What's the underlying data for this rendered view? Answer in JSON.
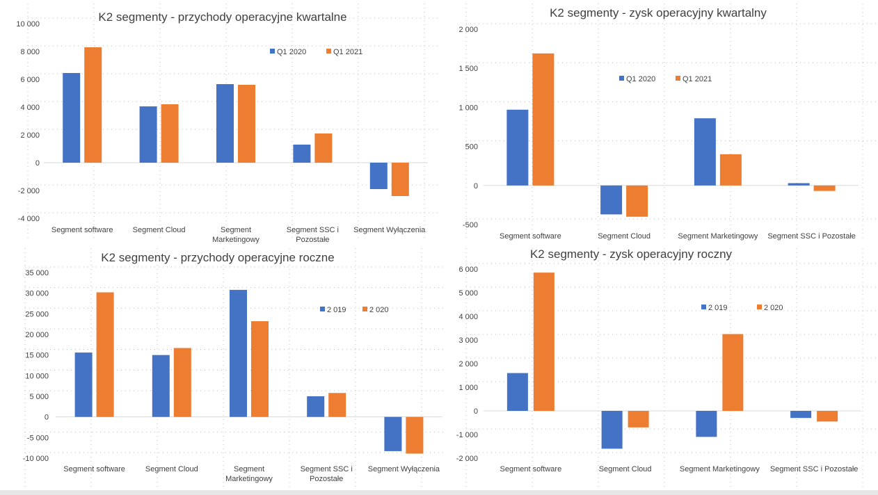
{
  "colors": {
    "blue": "#4472C4",
    "orange": "#ED7D31",
    "text": "#404040",
    "axis": "#d9d9d9",
    "grid": "#bfbfbf"
  },
  "chart_data": [
    {
      "type": "bar",
      "title": "K2 segmenty - przychody operacyjne kwartalne",
      "categories": [
        "Segment software",
        "Segment Cloud",
        "Segment Marketingowy",
        "Segment SSC i Pozostałe",
        "Segment Wyłączenia"
      ],
      "series": [
        {
          "name": "Q1 2020",
          "values": [
            6450,
            4050,
            5650,
            1300,
            -1900
          ]
        },
        {
          "name": "Q1 2021",
          "values": [
            8300,
            4200,
            5600,
            2100,
            -2400
          ]
        }
      ],
      "yticks": [
        "10 000",
        "8 000",
        "6 000",
        "4 000",
        "2 000",
        "0",
        "-2 000",
        "-4 000"
      ],
      "ylim": [
        -4000,
        10000
      ],
      "legend_position": "top-right"
    },
    {
      "type": "bar",
      "title": "K2 segmenty - zysk operacyjny kwartalny",
      "categories": [
        "Segment software",
        "Segment Cloud",
        "Segment Marketingowy",
        "Segment SSC i Pozostałe"
      ],
      "series": [
        {
          "name": "Q1 2020",
          "values": [
            970,
            -370,
            860,
            30
          ]
        },
        {
          "name": "Q1 2021",
          "values": [
            1690,
            -400,
            400,
            -70
          ]
        }
      ],
      "yticks": [
        "2 000",
        "1 500",
        "1 000",
        "500",
        "0",
        "-500"
      ],
      "ylim": [
        -500,
        2000
      ],
      "legend_position": "top-right"
    },
    {
      "type": "bar",
      "title": "K2 segmenty - przychody operacyjne roczne",
      "categories": [
        "Segment software",
        "Segment Cloud",
        "Segment Marketingowy",
        "Segment SSC i Pozostałe",
        "Segment Wyłączenia"
      ],
      "series": [
        {
          "name": "2 019",
          "values": [
            15600,
            15000,
            30800,
            5000,
            -8300
          ]
        },
        {
          "name": "2 020",
          "values": [
            30200,
            16700,
            23200,
            5800,
            -8900
          ]
        }
      ],
      "yticks": [
        "35 000",
        "30 000",
        "25 000",
        "20 000",
        "15 000",
        "10 000",
        "5 000",
        "0",
        "-5 000",
        "-10 000"
      ],
      "ylim": [
        -10000,
        35000
      ],
      "legend_position": "top-right"
    },
    {
      "type": "bar",
      "title": "K2 segmenty - zysk operacyjny roczny",
      "categories": [
        "Segment software",
        "Segment Cloud",
        "Segment Marketingowy",
        "Segment SSC i Pozostałe"
      ],
      "series": [
        {
          "name": "2 019",
          "values": [
            1600,
            -1600,
            -1100,
            -300
          ]
        },
        {
          "name": "2 020",
          "values": [
            5850,
            -700,
            3250,
            -450
          ]
        }
      ],
      "yticks": [
        "6 000",
        "5 000",
        "4 000",
        "3 000",
        "2 000",
        "1 000",
        "0",
        "-1 000",
        "-2 000"
      ],
      "ylim": [
        -2000,
        6000
      ],
      "legend_position": "top-right"
    }
  ]
}
